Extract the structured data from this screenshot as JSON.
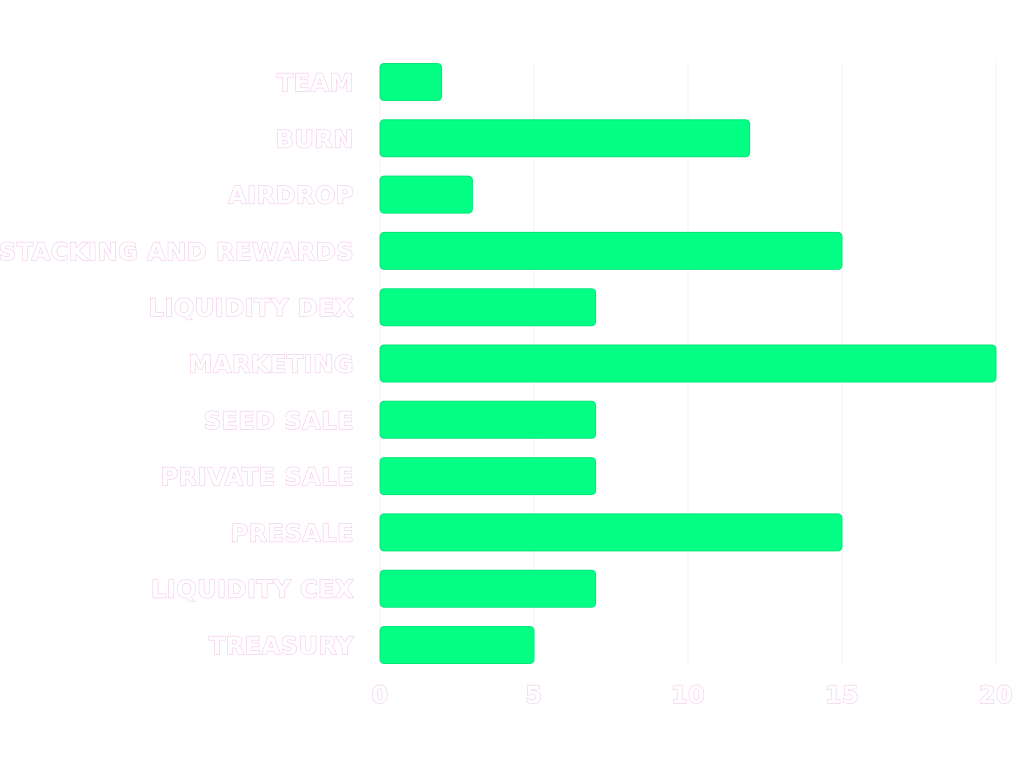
{
  "chart_data": {
    "type": "bar",
    "orientation": "horizontal",
    "categories": [
      "TEAM",
      "BURN",
      "AIRDROP",
      "STACKING AND REWARDS",
      "LIQUIDITY DEX",
      "MARKETING",
      "SEED SALE",
      "PRIVATE SALE",
      "PRESALE",
      "LIQUIDITY CEX",
      "TREASURY"
    ],
    "values": [
      2,
      12,
      3,
      15,
      7,
      20,
      7,
      7,
      15,
      7,
      5
    ],
    "title": "",
    "xlabel": "",
    "ylabel": "",
    "xlim": [
      0,
      20
    ],
    "xticks": [
      "0",
      "5",
      "10",
      "15",
      "20"
    ],
    "grid": "vertical",
    "legend": "none",
    "colors": {
      "bar": "#03ff84",
      "label_fill": "#ffffff",
      "label_outline": "#f2c9ea",
      "grid": "#fbeef8"
    }
  }
}
